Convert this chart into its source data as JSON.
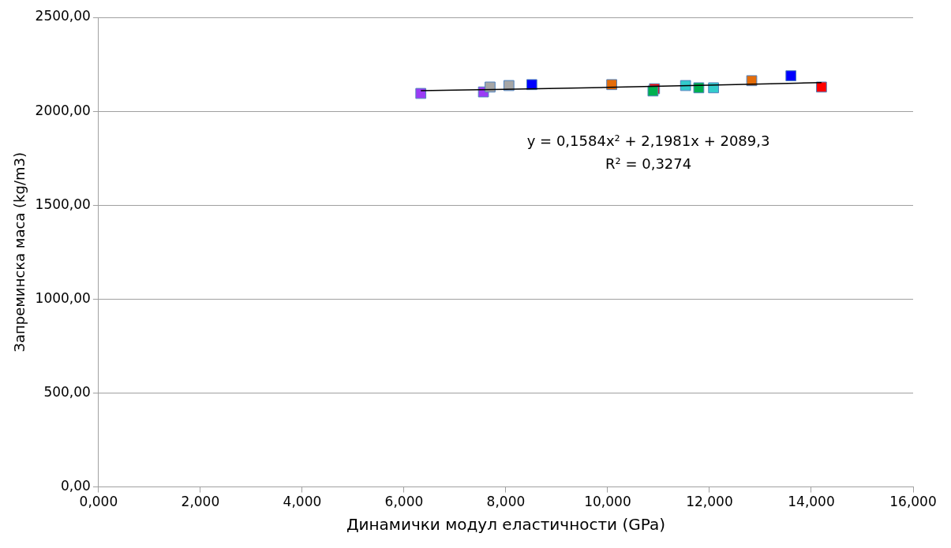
{
  "chart_data": {
    "type": "scatter",
    "xlabel": "Динамички модул еластичности (GPa)",
    "ylabel": "Запреминска маса (kg/m3)",
    "xlim": [
      0,
      16
    ],
    "ylim": [
      0,
      2500
    ],
    "xticks": [
      {
        "value": 0,
        "label": "0,000"
      },
      {
        "value": 2,
        "label": "2,000"
      },
      {
        "value": 4,
        "label": "4,000"
      },
      {
        "value": 6,
        "label": "6,000"
      },
      {
        "value": 8,
        "label": "8,000"
      },
      {
        "value": 10,
        "label": "10,000"
      },
      {
        "value": 12,
        "label": "12,000"
      },
      {
        "value": 14,
        "label": "14,000"
      },
      {
        "value": 16,
        "label": "16,000"
      }
    ],
    "yticks": [
      {
        "value": 0,
        "label": "0,00"
      },
      {
        "value": 500,
        "label": "500,00"
      },
      {
        "value": 1000,
        "label": "1000,00"
      },
      {
        "value": 1500,
        "label": "1500,00"
      },
      {
        "value": 2000,
        "label": "2000,00"
      },
      {
        "value": 2500,
        "label": "2500,00"
      }
    ],
    "grid": "y",
    "legend": false,
    "marker": "square",
    "annotations": [
      "y = 0,1584x² + 2,1981x + 2089,3",
      "R² = 0,3274"
    ],
    "series": [
      {
        "type": "scatter",
        "color": "#9b3bf5",
        "x": [
          6.33,
          7.56
        ],
        "values": [
          2095,
          2103
        ]
      },
      {
        "type": "scatter",
        "color": "#a6a6a6",
        "x": [
          7.69,
          8.06
        ],
        "values": [
          2129,
          2137
        ]
      },
      {
        "type": "scatter",
        "color": "#0000ff",
        "x": [
          8.51,
          13.6
        ],
        "values": [
          2142,
          2189
        ]
      },
      {
        "type": "scatter",
        "color": "#e46c0a",
        "x": [
          10.08,
          12.83
        ],
        "values": [
          2142,
          2163
        ]
      },
      {
        "type": "scatter",
        "color": "#ff0000",
        "x": [
          10.92,
          14.2
        ],
        "values": [
          2120,
          2129
        ]
      },
      {
        "type": "scatter",
        "color": "#00b050",
        "x": [
          10.89,
          11.79
        ],
        "values": [
          2108,
          2125
        ]
      },
      {
        "type": "scatter",
        "color": "#33cccc",
        "x": [
          11.53,
          12.08
        ],
        "values": [
          2137,
          2125
        ]
      },
      {
        "type": "line",
        "color": "#000000",
        "marker": "none",
        "x": [
          6.33,
          8,
          10,
          12,
          14.2
        ],
        "values": [
          2110,
          2117,
          2127,
          2139,
          2153
        ]
      }
    ]
  }
}
